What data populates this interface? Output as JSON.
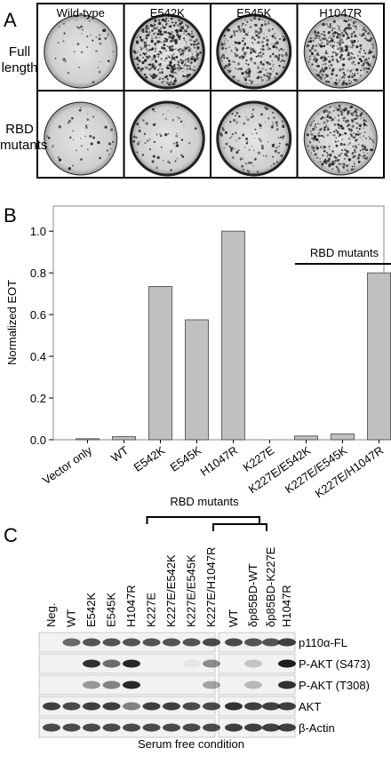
{
  "panel_a": {
    "label": "A",
    "columns": [
      "Wild-type",
      "E542K",
      "E545K",
      "H1047R"
    ],
    "rows": [
      "Full length",
      "RBD mutants"
    ]
  },
  "chart_data": {
    "type": "bar",
    "label": "B",
    "y_label": "Normalized EOT",
    "annotation": "RBD mutants",
    "categories": [
      "Vector only",
      "WT",
      "E542K",
      "E545K",
      "H1047R",
      "K227E",
      "K227E/E542K",
      "K227E/E545K",
      "K227E/H1047R"
    ],
    "values": [
      0.005,
      0.015,
      0.735,
      0.575,
      1.0,
      0,
      0.018,
      0.028,
      0.8
    ],
    "color": "#c0c0c0",
    "ylim": [
      0,
      1.12
    ],
    "yticks": [
      {
        "value": 0,
        "label": "0.0"
      },
      0.2,
      0.4,
      0.6,
      0.8,
      {
        "value": 1,
        "label": "1.0"
      }
    ]
  },
  "panel_c": {
    "label": "C",
    "group_label": "RBD mutants",
    "lanes_left": [
      "Neg.",
      "WT",
      "E542K",
      "E545K",
      "H1047R",
      "K227E",
      "K227E/E542K",
      "K227E/E545K",
      "K227E/H1047R"
    ],
    "lanes_right": [
      "WT",
      "δp85BD-WT",
      "δp85BD-K227E",
      "H1047R"
    ],
    "rows": [
      "p110α-FL",
      "P-AKT (S473)",
      "P-AKT (T308)",
      "AKT",
      "β-Actin"
    ],
    "footer": "Serum free condition"
  }
}
